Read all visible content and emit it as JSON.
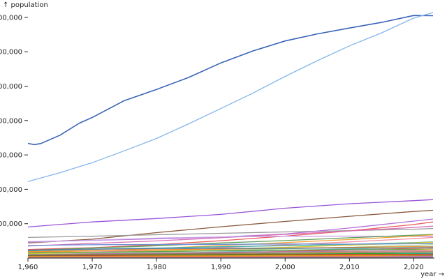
{
  "chart_data": {
    "type": "line",
    "xlabel": "year →",
    "ylabel": "↑ population",
    "xlim": [
      1960,
      2023
    ],
    "ylim": [
      0,
      1420000000
    ],
    "x_ticks": [
      {
        "value": 1960,
        "label": "1,960"
      },
      {
        "value": 1970,
        "label": "1,970"
      },
      {
        "value": 1980,
        "label": "1,980"
      },
      {
        "value": 1990,
        "label": "1,990"
      },
      {
        "value": 2000,
        "label": "2,000"
      },
      {
        "value": 2010,
        "label": "2,010"
      },
      {
        "value": 2020,
        "label": "2,020"
      }
    ],
    "y_ticks": [
      {
        "value": 200000000,
        "label": "00,000"
      },
      {
        "value": 400000000,
        "label": "00,000"
      },
      {
        "value": 600000000,
        "label": "00,000"
      },
      {
        "value": 800000000,
        "label": "00,000"
      },
      {
        "value": 1000000000,
        "label": "00,000"
      },
      {
        "value": 1200000000,
        "label": "00,000"
      },
      {
        "value": 1400000000,
        "label": "00,000"
      }
    ],
    "grid": false,
    "legend": "none",
    "series": [
      {
        "color": "#3a63b8",
        "x": [
          1960,
          1961,
          1962,
          1965,
          1968,
          1970,
          1975,
          1980,
          1985,
          1990,
          1995,
          2000,
          2005,
          2010,
          2015,
          2020,
          2023
        ],
        "values": [
          667000000,
          660000000,
          666000000,
          715000000,
          785000000,
          818000000,
          916000000,
          981000000,
          1051000000,
          1135000000,
          1205000000,
          1263000000,
          1304000000,
          1338000000,
          1371000000,
          1411000000,
          1410000000
        ]
      },
      {
        "color": "#85b6e8",
        "x": [
          1960,
          1965,
          1970,
          1975,
          1980,
          1985,
          1990,
          1995,
          2000,
          2005,
          2010,
          2015,
          2020,
          2023
        ],
        "values": [
          445000000,
          497000000,
          555000000,
          624000000,
          696000000,
          781000000,
          870000000,
          960000000,
          1057000000,
          1148000000,
          1234000000,
          1310000000,
          1396000000,
          1428000000
        ]
      },
      {
        "color": "#9a55d8",
        "x": [
          1960,
          1970,
          1980,
          1990,
          2000,
          2010,
          2020,
          2023
        ],
        "values": [
          181000000,
          210000000,
          230000000,
          254000000,
          290000000,
          316000000,
          334000000,
          340000000
        ]
      },
      {
        "color": "#8b5a3c",
        "x": [
          1960,
          1970,
          1980,
          1990,
          2000,
          2010,
          2020,
          2023
        ],
        "values": [
          88000000,
          110000000,
          148000000,
          182000000,
          213000000,
          243000000,
          271000000,
          278000000
        ]
      },
      {
        "color": "#9a9a9a",
        "x": [
          1960,
          1970,
          1980,
          1990,
          2000,
          2010,
          2020,
          2023
        ],
        "values": [
          120000000,
          127000000,
          136000000,
          144000000,
          152000000,
          160000000,
          168000000,
          172000000
        ]
      },
      {
        "color": "#b36fd6",
        "x": [
          1960,
          1970,
          1980,
          1990,
          2000,
          2010,
          2020,
          2023
        ],
        "values": [
          95000000,
          103000000,
          112000000,
          122000000,
          140000000,
          175000000,
          215000000,
          227000000
        ]
      },
      {
        "color": "#e85b5b",
        "x": [
          1960,
          1970,
          1980,
          1990,
          2000,
          2010,
          2020,
          2023
        ],
        "values": [
          50000000,
          60000000,
          78000000,
          101000000,
          128000000,
          158000000,
          195000000,
          210000000
        ]
      },
      {
        "color": "#d86fb8",
        "x": [
          1960,
          1970,
          1980,
          1990,
          2000,
          2010,
          2020,
          2023
        ],
        "values": [
          70000000,
          85000000,
          100000000,
          118000000,
          138000000,
          158000000,
          178000000,
          186000000
        ]
      },
      {
        "color": "#c8a0e6",
        "x": [
          1960,
          1970,
          1980,
          1990,
          2000,
          2010,
          2020,
          2023
        ],
        "values": [
          93000000,
          104000000,
          116000000,
          123000000,
          127000000,
          128000000,
          126000000,
          125000000
        ]
      },
      {
        "color": "#5fa05a",
        "x": [
          1960,
          1970,
          1980,
          1990,
          2000,
          2010,
          2020,
          2023
        ],
        "values": [
          45000000,
          58000000,
          72000000,
          88000000,
          102000000,
          118000000,
          133000000,
          138000000
        ]
      },
      {
        "color": "#f2a33a",
        "x": [
          1960,
          1970,
          1980,
          1990,
          2000,
          2010,
          2020,
          2023
        ],
        "values": [
          33000000,
          42000000,
          56000000,
          73000000,
          90000000,
          108000000,
          128000000,
          135000000
        ]
      },
      {
        "color": "#f28da0",
        "x": [
          1960,
          1970,
          1980,
          1990,
          2000,
          2010,
          2020,
          2023
        ],
        "values": [
          27000000,
          36000000,
          46000000,
          61000000,
          77000000,
          94000000,
          113000000,
          120000000
        ]
      },
      {
        "color": "#46b3a8",
        "x": [
          1960,
          1970,
          1980,
          1990,
          2000,
          2010,
          2020,
          2023
        ],
        "values": [
          42000000,
          51000000,
          58000000,
          66000000,
          72000000,
          80000000,
          90000000,
          94000000
        ]
      },
      {
        "color": "#d9c832",
        "x": [
          1960,
          1970,
          1980,
          1990,
          2000,
          2010,
          2020,
          2023
        ],
        "values": [
          26000000,
          33000000,
          41000000,
          52000000,
          63000000,
          75000000,
          88000000,
          92000000
        ]
      },
      {
        "color": "#6c8fd6",
        "x": [
          1960,
          1970,
          1980,
          1990,
          2000,
          2010,
          2020,
          2023
        ],
        "values": [
          73000000,
          78000000,
          79000000,
          80000000,
          82000000,
          81000000,
          83000000,
          84000000
        ]
      },
      {
        "color": "#a8d08c",
        "x": [
          1960,
          1970,
          1980,
          1990,
          2000,
          2010,
          2020,
          2023
        ],
        "values": [
          21000000,
          27000000,
          34000000,
          45000000,
          54000000,
          63000000,
          74000000,
          78000000
        ]
      },
      {
        "color": "#f28e2b",
        "x": [
          1960,
          1970,
          1980,
          1990,
          2000,
          2010,
          2020,
          2023
        ],
        "values": [
          38000000,
          44000000,
          49000000,
          52000000,
          58000000,
          62000000,
          66000000,
          67000000
        ]
      },
      {
        "color": "#4e79a7",
        "x": [
          1960,
          1970,
          1980,
          1990,
          2000,
          2010,
          2020,
          2023
        ],
        "values": [
          46000000,
          52000000,
          56000000,
          57000000,
          57000000,
          59000000,
          59000000,
          59000000
        ]
      },
      {
        "color": "#76b7b2",
        "x": [
          1960,
          1970,
          1980,
          1990,
          2000,
          2010,
          2020,
          2023
        ],
        "values": [
          15000000,
          20000000,
          27000000,
          36000000,
          45000000,
          53000000,
          62000000,
          65000000
        ]
      },
      {
        "color": "#e15759",
        "x": [
          1960,
          1970,
          1980,
          1990,
          2000,
          2010,
          2020,
          2023
        ],
        "values": [
          12000000,
          17000000,
          24000000,
          31000000,
          39000000,
          47000000,
          57000000,
          61000000
        ]
      },
      {
        "color": "#59a14f",
        "x": [
          1960,
          1970,
          1980,
          1990,
          2000,
          2010,
          2020,
          2023
        ],
        "values": [
          30000000,
          34000000,
          38000000,
          42000000,
          46000000,
          49000000,
          51000000,
          52000000
        ]
      },
      {
        "color": "#edc948",
        "x": [
          1960,
          1970,
          1980,
          1990,
          2000,
          2010,
          2020,
          2023
        ],
        "values": [
          10000000,
          13000000,
          17000000,
          23000000,
          30000000,
          37000000,
          46000000,
          50000000
        ]
      },
      {
        "color": "#b07aa1",
        "x": [
          1960,
          1970,
          1980,
          1990,
          2000,
          2010,
          2020,
          2023
        ],
        "values": [
          20000000,
          25000000,
          29000000,
          33000000,
          37000000,
          40000000,
          43000000,
          44000000
        ]
      },
      {
        "color": "#ff9da7",
        "x": [
          1960,
          1970,
          1980,
          1990,
          2000,
          2010,
          2020,
          2023
        ],
        "values": [
          8000000,
          11000000,
          15000000,
          20000000,
          26000000,
          32000000,
          39000000,
          42000000
        ]
      },
      {
        "color": "#9c755f",
        "x": [
          1960,
          1970,
          1980,
          1990,
          2000,
          2010,
          2020,
          2023
        ],
        "values": [
          18000000,
          21000000,
          24000000,
          27000000,
          30000000,
          33000000,
          36000000,
          37000000
        ]
      },
      {
        "color": "#bab0ac",
        "x": [
          1960,
          1970,
          1980,
          1990,
          2000,
          2010,
          2020,
          2023
        ],
        "values": [
          6000000,
          9000000,
          12000000,
          16000000,
          21000000,
          26000000,
          32000000,
          34000000
        ]
      },
      {
        "color": "#2ca02c",
        "x": [
          1960,
          1970,
          1980,
          1990,
          2000,
          2010,
          2020,
          2023
        ],
        "values": [
          14000000,
          16000000,
          19000000,
          21000000,
          24000000,
          26000000,
          28000000,
          29000000
        ]
      },
      {
        "color": "#17becf",
        "x": [
          1960,
          1970,
          1980,
          1990,
          2000,
          2010,
          2020,
          2023
        ],
        "values": [
          5000000,
          7000000,
          9000000,
          12000000,
          15000000,
          19000000,
          24000000,
          26000000
        ]
      },
      {
        "color": "#d62728",
        "x": [
          1960,
          1970,
          1980,
          1990,
          2000,
          2010,
          2020,
          2023
        ],
        "values": [
          11000000,
          13000000,
          15000000,
          17000000,
          19000000,
          21000000,
          22000000,
          23000000
        ]
      },
      {
        "color": "#8c564b",
        "x": [
          1960,
          1970,
          1980,
          1990,
          2000,
          2010,
          2020,
          2023
        ],
        "values": [
          4000000,
          5000000,
          7000000,
          9000000,
          12000000,
          15000000,
          18000000,
          20000000
        ]
      },
      {
        "color": "#bcbd22",
        "x": [
          1960,
          1970,
          1980,
          1990,
          2000,
          2010,
          2020,
          2023
        ],
        "values": [
          9000000,
          10000000,
          12000000,
          13000000,
          15000000,
          16000000,
          17000000,
          17000000
        ]
      },
      {
        "color": "#1f77b4",
        "x": [
          1960,
          1970,
          1980,
          1990,
          2000,
          2010,
          2020,
          2023
        ],
        "values": [
          3000000,
          4000000,
          5000000,
          7000000,
          9000000,
          11000000,
          13000000,
          14000000
        ]
      },
      {
        "color": "#ff7f0e",
        "x": [
          1960,
          1970,
          1980,
          1990,
          2000,
          2010,
          2020,
          2023
        ],
        "values": [
          7000000,
          8000000,
          9000000,
          10000000,
          11000000,
          12000000,
          12000000,
          12000000
        ]
      },
      {
        "color": "#9467bd",
        "x": [
          1960,
          1970,
          1980,
          1990,
          2000,
          2010,
          2020,
          2023
        ],
        "values": [
          2000000,
          3000000,
          4000000,
          5000000,
          6000000,
          7000000,
          9000000,
          10000000
        ]
      },
      {
        "color": "#e377c2",
        "x": [
          1960,
          1970,
          1980,
          1990,
          2000,
          2010,
          2020,
          2023
        ],
        "values": [
          4000000,
          5000000,
          5000000,
          6000000,
          7000000,
          7000000,
          8000000,
          8000000
        ]
      },
      {
        "color": "#7f7f7f",
        "x": [
          1960,
          1970,
          1980,
          1990,
          2000,
          2010,
          2020,
          2023
        ],
        "values": [
          1000000,
          1500000,
          2000000,
          2500000,
          3000000,
          3500000,
          4000000,
          4200000
        ]
      }
    ]
  }
}
